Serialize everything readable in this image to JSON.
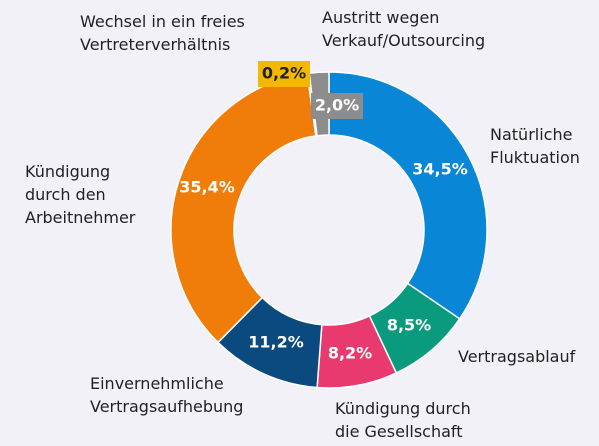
{
  "chart_data": {
    "type": "donut",
    "categories": [
      "Natürliche\nFluktuation",
      "Vertragsablauf",
      "Kündigung durch\ndie Gesellschaft",
      "Einvernehmliche\nVertragsaufhebung",
      "Kündigung\ndurch den\nArbeitnehmer",
      "Wechsel in ein freies\nVertreterverhältnis",
      "Austritt wegen\nVerkauf/Outsourcing"
    ],
    "values": [
      34.5,
      8.5,
      8.2,
      11.2,
      35.4,
      0.2,
      2.0
    ],
    "value_labels": [
      "34,5%",
      "8,5%",
      "8,2%",
      "11,2%",
      "35,4%",
      "0,2%",
      "2,0%"
    ],
    "colors": [
      "#0a86d6",
      "#0a9b7f",
      "#e83a6e",
      "#0b4a7e",
      "#f07d0a",
      "#f5b800",
      "#8c8c8c"
    ]
  }
}
